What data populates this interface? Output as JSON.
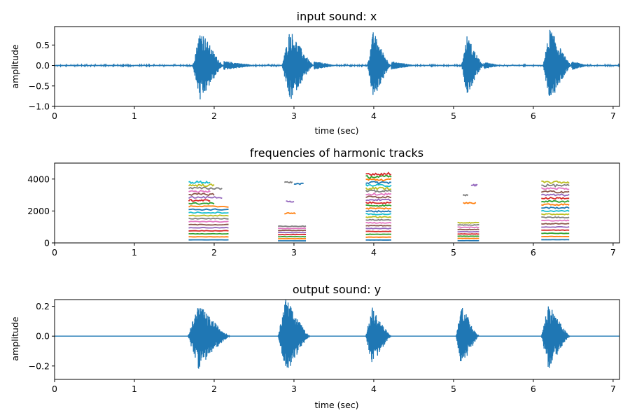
{
  "chart_data": [
    {
      "type": "line",
      "title": "input sound: x",
      "xlabel": "time (sec)",
      "ylabel": "amplitude",
      "xlim": [
        0,
        7.08
      ],
      "ylim": [
        -1.0,
        0.95
      ],
      "xticks": [
        0,
        1,
        2,
        3,
        4,
        5,
        6,
        7
      ],
      "yticks": [
        -1.0,
        -0.5,
        0.0,
        0.5
      ],
      "ytick_labels": [
        "−1.0",
        "−0.5",
        "0.0",
        "0.5"
      ],
      "color": "#1f77b4",
      "noise_floor": 0.015,
      "bursts": [
        {
          "start": 1.73,
          "end": 2.12,
          "peak": 0.92,
          "tail_end": 2.55
        },
        {
          "start": 2.85,
          "end": 3.25,
          "peak": 0.9,
          "tail_end": 3.55
        },
        {
          "start": 3.92,
          "end": 4.22,
          "peak": 0.85,
          "tail_end": 4.55
        },
        {
          "start": 5.1,
          "end": 5.38,
          "peak": 0.75,
          "tail_end": 5.6
        },
        {
          "start": 6.12,
          "end": 6.48,
          "peak": 0.93,
          "tail_end": 6.7
        }
      ]
    },
    {
      "type": "line",
      "title": "frequencies of harmonic tracks",
      "xlabel": "",
      "ylabel": "",
      "xlim": [
        0,
        7.08
      ],
      "ylim": [
        0,
        5000
      ],
      "xticks": [
        0,
        1,
        2,
        3,
        4,
        5,
        6,
        7
      ],
      "yticks": [
        0,
        2000,
        4000
      ],
      "palette": [
        "#1f77b4",
        "#ff7f0e",
        "#2ca02c",
        "#d62728",
        "#9467bd",
        "#8c564b",
        "#e377c2",
        "#7f7f7f",
        "#bcbd22",
        "#17becf"
      ],
      "segments": [
        {
          "start": 1.68,
          "end": 2.18,
          "f0": 190,
          "n": 20,
          "taper": [
            2.1,
            2.0,
            1.95
          ]
        },
        {
          "start": 2.8,
          "end": 3.15,
          "f0": 130,
          "n": 8,
          "extra": [
            {
              "start": 2.88,
              "end": 3.02,
              "f": 1850
            },
            {
              "start": 2.9,
              "end": 3.0,
              "f": 2600
            },
            {
              "start": 2.88,
              "end": 2.98,
              "f": 3800
            },
            {
              "start": 3.0,
              "end": 3.12,
              "f": 3700
            }
          ]
        },
        {
          "start": 3.9,
          "end": 4.22,
          "f0": 180,
          "n": 24,
          "taper": []
        },
        {
          "start": 5.05,
          "end": 5.32,
          "f0": 140,
          "n": 9,
          "extra": [
            {
              "start": 5.12,
              "end": 5.28,
              "f": 2500
            },
            {
              "start": 5.22,
              "end": 5.3,
              "f": 3620
            },
            {
              "start": 5.12,
              "end": 5.18,
              "f": 3000
            }
          ]
        },
        {
          "start": 6.1,
          "end": 6.45,
          "f0": 200,
          "n": 19,
          "taper": []
        }
      ]
    },
    {
      "type": "line",
      "title": "output sound: y",
      "xlabel": "time (sec)",
      "ylabel": "amplitude",
      "xlim": [
        0,
        7.08
      ],
      "ylim": [
        -0.29,
        0.245
      ],
      "xticks": [
        0,
        1,
        2,
        3,
        4,
        5,
        6,
        7
      ],
      "yticks": [
        -0.2,
        0.0,
        0.2
      ],
      "ytick_labels": [
        "−0.2",
        "0.0",
        "0.2"
      ],
      "color": "#1f77b4",
      "noise_floor": 0.0,
      "bursts": [
        {
          "start": 1.67,
          "end": 2.2,
          "peak": 0.22,
          "tail_end": 2.2
        },
        {
          "start": 2.8,
          "end": 3.2,
          "peak": 0.26,
          "tail_end": 3.2
        },
        {
          "start": 3.9,
          "end": 4.22,
          "peak": 0.2,
          "tail_end": 4.22
        },
        {
          "start": 5.03,
          "end": 5.32,
          "peak": 0.22,
          "tail_end": 5.32
        },
        {
          "start": 6.1,
          "end": 6.46,
          "peak": 0.23,
          "tail_end": 6.46
        }
      ]
    }
  ]
}
